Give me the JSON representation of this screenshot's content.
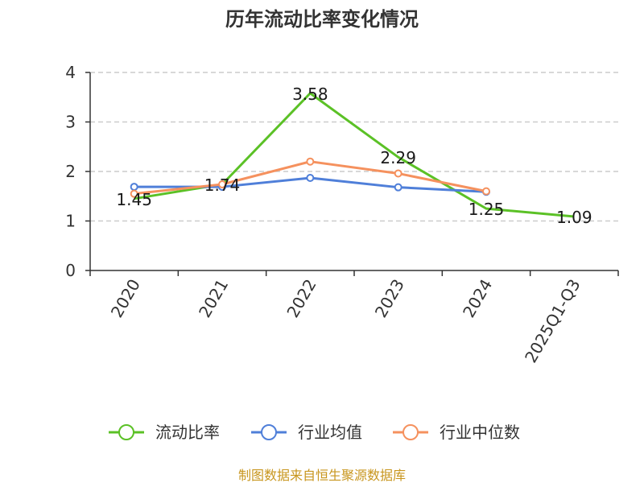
{
  "chart_data": {
    "type": "line",
    "title": "历年流动比率变化情况",
    "categories": [
      "2020",
      "2021",
      "2022",
      "2023",
      "2024",
      "2025Q1-Q3"
    ],
    "ylim": [
      0,
      4
    ],
    "yticks": [
      "0",
      "1",
      "2",
      "3",
      "4"
    ],
    "grid": true,
    "legend_position": "bottom",
    "series": [
      {
        "name": "流动比率",
        "color": "#5bc126",
        "values": [
          1.45,
          1.74,
          3.58,
          2.29,
          1.25,
          1.09
        ],
        "labels": [
          "1.45",
          "1.74",
          "3.58",
          "2.29",
          "1.25",
          "1.09"
        ],
        "show_markers": false
      },
      {
        "name": "行业均值",
        "color": "#4f7fd9",
        "values": [
          1.69,
          1.69,
          1.87,
          1.68,
          1.59,
          null
        ],
        "show_markers": true
      },
      {
        "name": "行业中位数",
        "color": "#f5915e",
        "values": [
          1.55,
          1.74,
          2.2,
          1.96,
          1.6,
          null
        ],
        "show_markers": true
      }
    ]
  },
  "source": {
    "text": "制图数据来自恒生聚源数据库",
    "color": "#c8961e"
  }
}
